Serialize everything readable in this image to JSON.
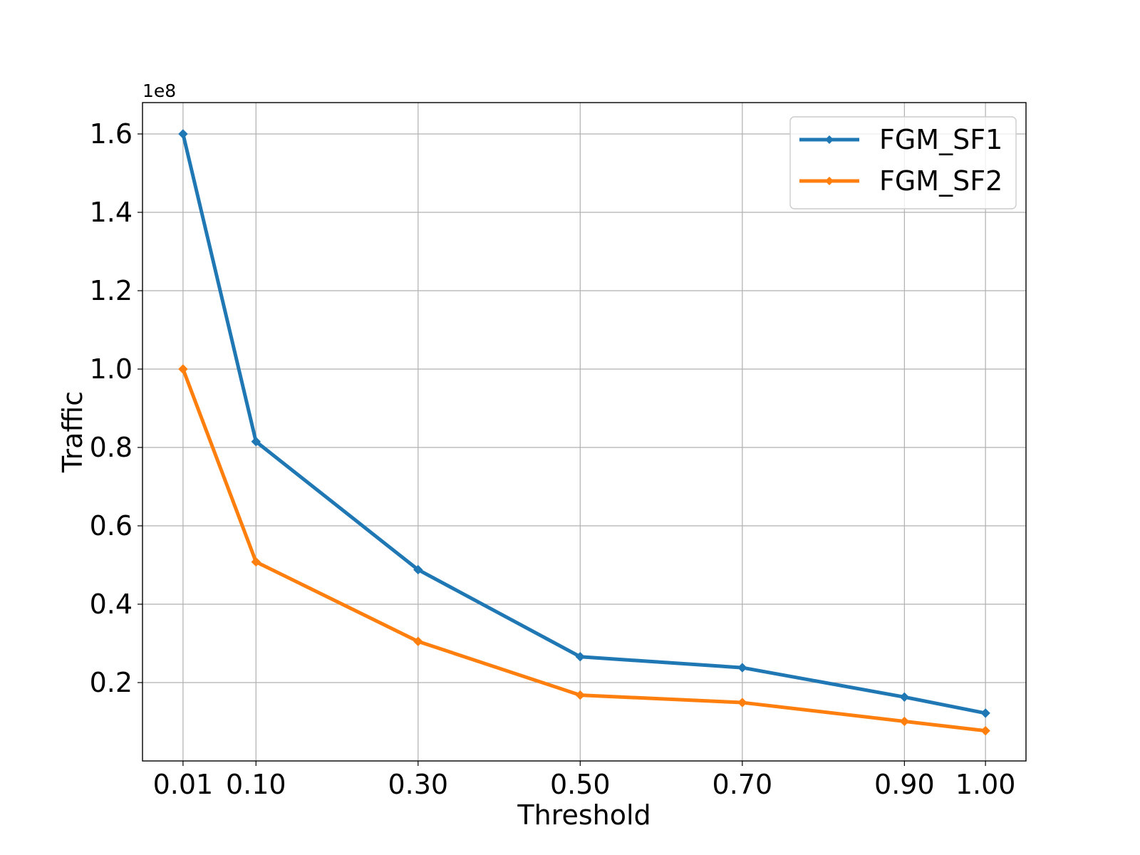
{
  "chart_data": {
    "type": "line",
    "xlabel": "Threshold",
    "ylabel": "Traffic",
    "y_offset_text": "1e8",
    "x": [
      0.01,
      0.1,
      0.3,
      0.5,
      0.7,
      0.9,
      1.0
    ],
    "x_tick_labels": [
      "0.01",
      "0.10",
      "0.30",
      "0.50",
      "0.70",
      "0.90",
      "1.00"
    ],
    "y_ticks": [
      0.2,
      0.4,
      0.6,
      0.8,
      1.0,
      1.2,
      1.4,
      1.6
    ],
    "y_tick_labels": [
      "0.2",
      "0.4",
      "0.6",
      "0.8",
      "1.0",
      "1.2",
      "1.4",
      "1.6"
    ],
    "xlim": [
      -0.04,
      1.05
    ],
    "ylim": [
      0.0,
      1.68
    ],
    "y_scale_note": "values shown in units of 1e8",
    "grid": true,
    "legend_position": "top-right",
    "series": [
      {
        "name": "FGM_SF1",
        "color": "#1f77b4",
        "marker": "diamond",
        "values": [
          1.6,
          0.815,
          0.488,
          0.266,
          0.238,
          0.163,
          0.122
        ]
      },
      {
        "name": "FGM_SF2",
        "color": "#ff7f0e",
        "marker": "diamond",
        "values": [
          1.0,
          0.508,
          0.305,
          0.168,
          0.149,
          0.101,
          0.077
        ]
      }
    ]
  }
}
